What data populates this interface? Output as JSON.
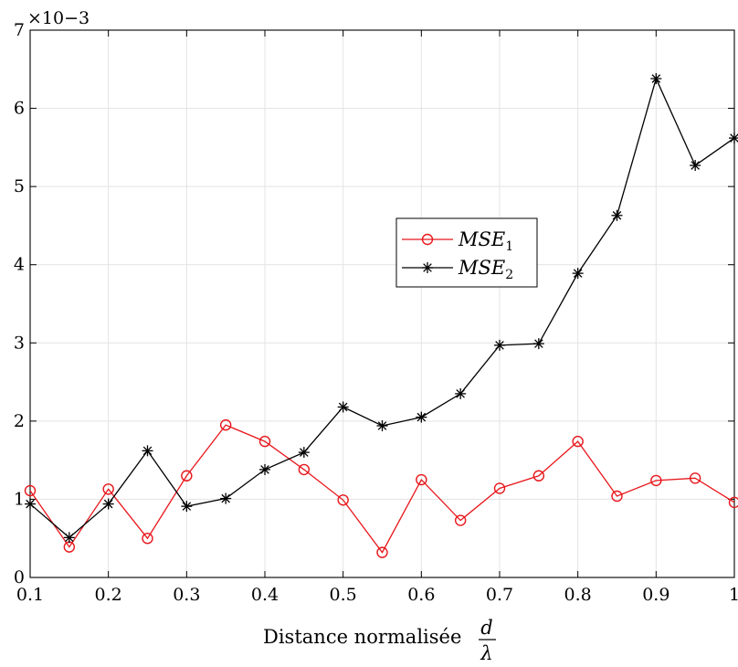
{
  "chart_data": {
    "type": "line",
    "x": [
      0.1,
      0.15,
      0.2,
      0.25,
      0.3,
      0.35,
      0.4,
      0.45,
      0.5,
      0.55,
      0.6,
      0.65,
      0.7,
      0.75,
      0.8,
      0.85,
      0.9,
      0.95,
      1.0
    ],
    "series": [
      {
        "name": "MSE1",
        "name_base": "MSE",
        "name_sub": "1",
        "color": "#e8161b",
        "marker": "circle",
        "values": [
          0.00111,
          0.00039,
          0.00113,
          0.0005,
          0.0013,
          0.00195,
          0.00174,
          0.00138,
          0.00099,
          0.00032,
          0.00125,
          0.00073,
          0.00114,
          0.0013,
          0.00174,
          0.00104,
          0.00124,
          0.00127,
          0.00096
        ]
      },
      {
        "name": "MSE2",
        "name_base": "MSE",
        "name_sub": "2",
        "color": "#000000",
        "marker": "asterisk",
        "values": [
          0.00094,
          0.00051,
          0.00094,
          0.00162,
          0.00091,
          0.00101,
          0.00138,
          0.0016,
          0.00218,
          0.00194,
          0.00205,
          0.00235,
          0.00297,
          0.00299,
          0.00389,
          0.00463,
          0.00638,
          0.00527,
          0.00562
        ]
      }
    ],
    "xlim": [
      0.1,
      1.0
    ],
    "ylim": [
      0,
      0.007
    ],
    "xticks": [
      "0.1",
      "0.2",
      "0.3",
      "0.4",
      "0.5",
      "0.6",
      "0.7",
      "0.8",
      "0.9",
      "1"
    ],
    "yticks": [
      "0",
      "1",
      "2",
      "3",
      "4",
      "5",
      "6",
      "7"
    ],
    "yscale_exponent": "×10−3",
    "xlabel": "Distance normalisée",
    "xlabel_fraction": {
      "numerator": "d",
      "denominator": "λ"
    },
    "ylabel": "",
    "title": "",
    "grid": true,
    "legend_position": "center-right"
  }
}
